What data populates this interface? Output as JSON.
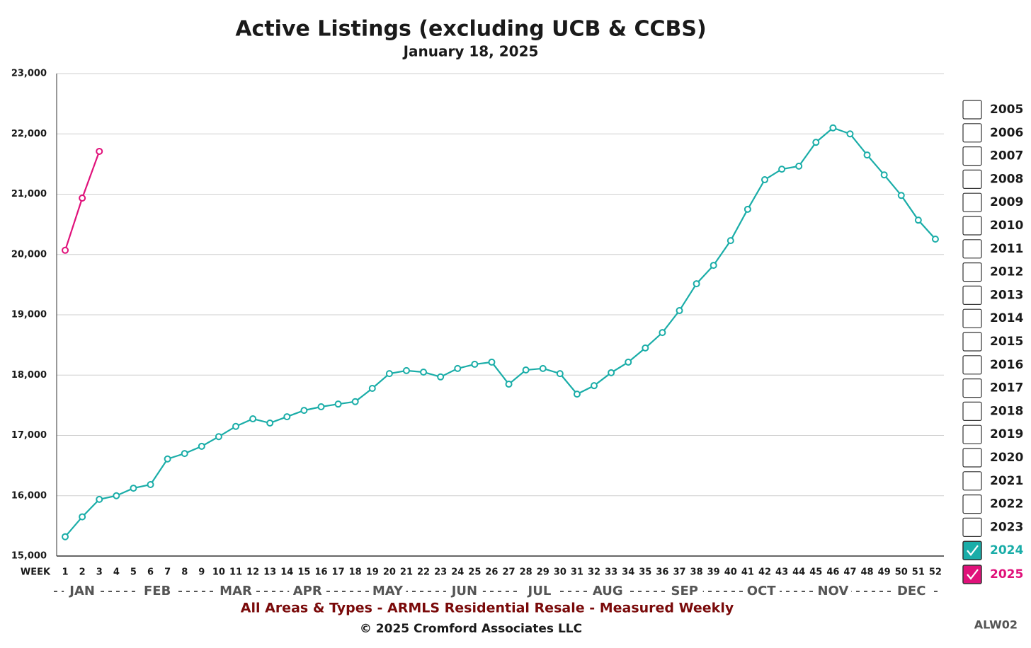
{
  "chart_data": {
    "type": "line",
    "title": "Active Listings (excluding UCB & CCBS)",
    "subtitle": "January 18, 2025",
    "x_label": "WEEK",
    "x": [
      1,
      2,
      3,
      4,
      5,
      6,
      7,
      8,
      9,
      10,
      11,
      12,
      13,
      14,
      15,
      16,
      17,
      18,
      19,
      20,
      21,
      22,
      23,
      24,
      25,
      26,
      27,
      28,
      29,
      30,
      31,
      32,
      33,
      34,
      35,
      36,
      37,
      38,
      39,
      40,
      41,
      42,
      43,
      44,
      45,
      46,
      47,
      48,
      49,
      50,
      51,
      52
    ],
    "xlim": [
      0.5,
      52.5
    ],
    "months": [
      "JAN",
      "FEB",
      "MAR",
      "APR",
      "MAY",
      "JUN",
      "JUL",
      "AUG",
      "SEP",
      "OCT",
      "NOV",
      "DEC"
    ],
    "ylim": [
      15000,
      23000
    ],
    "yticks": [
      {
        "value": 15000,
        "label": "15,000"
      },
      {
        "value": 16000,
        "label": "16,000"
      },
      {
        "value": 17000,
        "label": "17,000"
      },
      {
        "value": 18000,
        "label": "18,000"
      },
      {
        "value": 19000,
        "label": "19,000"
      },
      {
        "value": 20000,
        "label": "20,000"
      },
      {
        "value": 21000,
        "label": "21,000"
      },
      {
        "value": 22000,
        "label": "22,000"
      },
      {
        "value": 23000,
        "label": "23,000"
      }
    ],
    "grid": true,
    "legend_entries": [
      "2005",
      "2006",
      "2007",
      "2008",
      "2009",
      "2010",
      "2011",
      "2012",
      "2013",
      "2014",
      "2015",
      "2016",
      "2017",
      "2018",
      "2019",
      "2020",
      "2021",
      "2022",
      "2023"
    ],
    "series": [
      {
        "name": "2024",
        "color": "#1aada8",
        "values": [
          15320,
          15650,
          15940,
          16000,
          16125,
          16185,
          16610,
          16700,
          16820,
          16980,
          17150,
          17275,
          17205,
          17310,
          17415,
          17475,
          17520,
          17560,
          17780,
          18025,
          18075,
          18050,
          17970,
          18110,
          18180,
          18215,
          17850,
          18085,
          18110,
          18025,
          17685,
          17825,
          18040,
          18215,
          18450,
          18705,
          19070,
          19515,
          19820,
          20230,
          20750,
          21240,
          21415,
          21465,
          21860,
          22100,
          22000,
          21650,
          21320,
          20980,
          20570,
          20255
        ]
      },
      {
        "name": "2025",
        "color": "#e0117a",
        "values": [
          20070,
          20935,
          21710,
          null,
          null,
          null,
          null,
          null,
          null,
          null,
          null,
          null,
          null,
          null,
          null,
          null,
          null,
          null,
          null,
          null,
          null,
          null,
          null,
          null,
          null,
          null,
          null,
          null,
          null,
          null,
          null,
          null,
          null,
          null,
          null,
          null,
          null,
          null,
          null,
          null,
          null,
          null,
          null,
          null,
          null,
          null,
          null,
          null,
          null,
          null,
          null,
          null
        ]
      }
    ],
    "note": "All Areas & Types - ARMLS Residential Resale - Measured Weekly",
    "copyright": "© 2025 Cromford Associates LLC",
    "code": "ALW02"
  }
}
